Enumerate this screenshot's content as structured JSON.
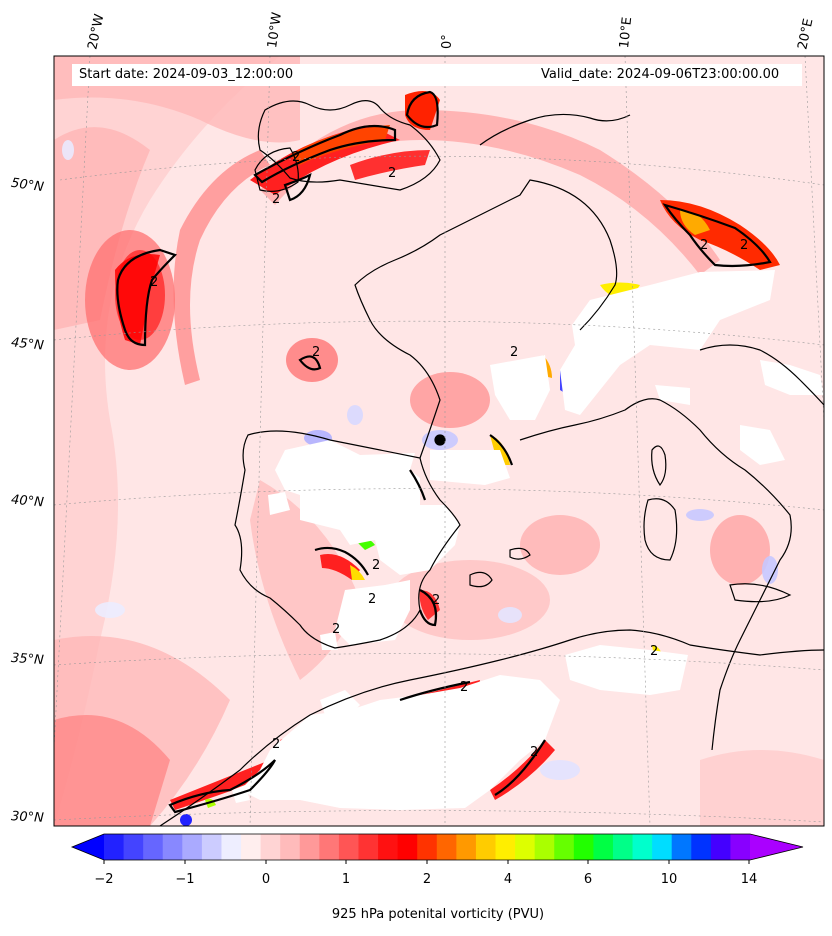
{
  "header": {
    "start_date": "Start date: 2024-09-03_12:00:00",
    "valid_date": "Valid_date: 2024-09-06T23:00:00.00"
  },
  "longitude_labels": [
    "20°W",
    "10°W",
    "0°",
    "10°E",
    "20°E"
  ],
  "latitude_labels": [
    "50°N",
    "45°N",
    "40°N",
    "35°N",
    "30°N"
  ],
  "contour_labels": [
    "2",
    "2",
    "2",
    "2",
    "2",
    "2",
    "2",
    "2",
    "2",
    "2",
    "2",
    "2",
    "2",
    "2",
    "2",
    "2"
  ],
  "colorbar": {
    "label": "925 hPa potenital vorticity (PVU)",
    "ticks": [
      "−2",
      "−1",
      "0",
      "1",
      "2",
      "4",
      "6",
      "10",
      "14"
    ],
    "colors": [
      "#0000ff",
      "#2222ff",
      "#4444ff",
      "#6666ff",
      "#8888ff",
      "#aaaaff",
      "#ccccff",
      "#eeeeff",
      "#ffeeee",
      "#ffd4d4",
      "#ffbbbb",
      "#ff9999",
      "#ff7777",
      "#ff5555",
      "#ff3333",
      "#ff1111",
      "#ff0000",
      "#ff3300",
      "#ff6600",
      "#ff9900",
      "#ffcc00",
      "#ffee00",
      "#ddff00",
      "#aaff00",
      "#66ff00",
      "#22ff00",
      "#00ff44",
      "#00ff88",
      "#00ffcc",
      "#00ddff",
      "#0077ff",
      "#0033ff",
      "#4400ff",
      "#8800ff",
      "#aa00ff"
    ]
  }
}
